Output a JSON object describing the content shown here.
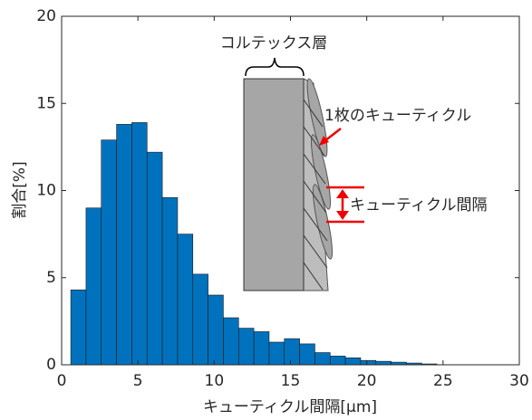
{
  "chart_data": {
    "type": "histogram",
    "xlabel": "キューティクル間隔[μm]",
    "ylabel": "割合[%]",
    "bins": [
      0.6,
      1.6,
      2.6,
      3.6,
      4.6,
      5.6,
      6.6,
      7.6,
      8.6,
      9.6,
      10.6,
      11.6,
      12.6,
      13.6,
      14.6,
      15.6,
      16.6,
      17.6,
      18.6,
      19.6,
      20.6,
      21.6,
      22.6,
      23.6,
      24.6
    ],
    "values": [
      4.3,
      9.0,
      12.9,
      13.8,
      13.9,
      12.2,
      9.6,
      7.5,
      5.2,
      4.0,
      2.7,
      2.1,
      1.9,
      1.3,
      1.5,
      1.2,
      0.7,
      0.5,
      0.4,
      0.25,
      0.2,
      0.15,
      0.1,
      0.05
    ],
    "color": "#0072bd",
    "xlim": [
      0,
      30
    ],
    "xticks": [
      0,
      5,
      10,
      15,
      20,
      25,
      30
    ],
    "ylim": [
      0,
      20
    ],
    "yticks": [
      0,
      5,
      10,
      15,
      20
    ],
    "annotations": {
      "cortex": "コルテックス層",
      "cuticle": "1枚のキューティクル",
      "spacing": "キューティクル間隔"
    }
  }
}
